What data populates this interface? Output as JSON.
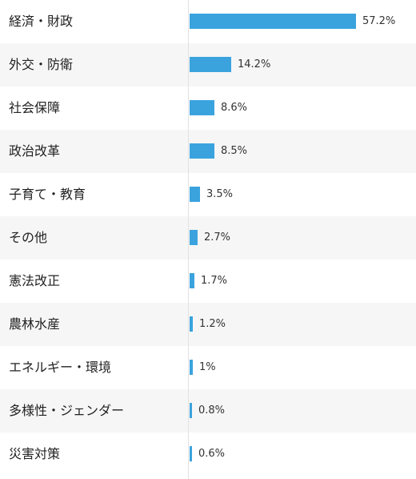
{
  "chart_data": {
    "type": "bar",
    "orientation": "horizontal",
    "categories": [
      "経済・財政",
      "外交・防衛",
      "社会保障",
      "政治改革",
      "子育て・教育",
      "その他",
      "憲法改正",
      "農林水産",
      "エネルギー・環境",
      "多様性・ジェンダー",
      "災害対策"
    ],
    "values": [
      57.2,
      14.2,
      8.6,
      8.5,
      3.5,
      2.7,
      1.7,
      1.2,
      1,
      0.8,
      0.6
    ],
    "value_labels": [
      "57.2%",
      "14.2%",
      "8.6%",
      "8.5%",
      "3.5%",
      "2.7%",
      "1.7%",
      "1.2%",
      "1%",
      "0.8%",
      "0.6%"
    ],
    "xlim": [
      0,
      57.2
    ],
    "bar_color": "#3aa3de",
    "alt_row_color": "#f6f6f6",
    "grid": false,
    "legend": "none"
  }
}
